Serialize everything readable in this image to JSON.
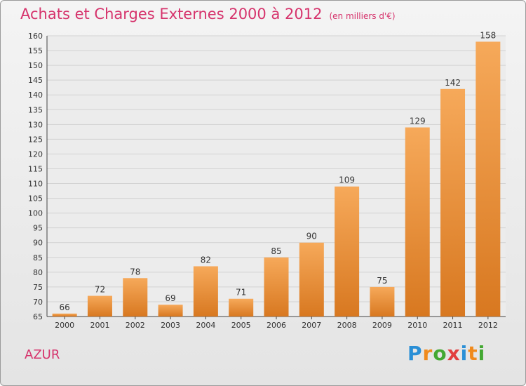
{
  "title": "Achats et Charges Externes 2000 à 2012",
  "subtitle": "(en milliers d'€)",
  "commune": "AZUR",
  "logo": {
    "text": "Proxiti",
    "colors": [
      "#2a8fd6",
      "#f08a1c",
      "#43a832",
      "#e23d3d",
      "#2a8fd6",
      "#f08a1c",
      "#43a832"
    ]
  },
  "colors": {
    "bar_light": "#f6a95a",
    "bar_dark": "#d87820",
    "title": "#d6336c"
  },
  "chart_data": {
    "type": "bar",
    "title": "Achats et Charges Externes 2000 à 2012",
    "subtitle": "(en milliers d'€)",
    "categories": [
      "2000",
      "2001",
      "2002",
      "2003",
      "2004",
      "2005",
      "2006",
      "2007",
      "2008",
      "2009",
      "2010",
      "2011",
      "2012"
    ],
    "values": [
      66,
      72,
      78,
      69,
      82,
      71,
      85,
      90,
      109,
      75,
      129,
      142,
      158
    ],
    "ylim": [
      65,
      160
    ],
    "yticks": [
      65,
      70,
      75,
      80,
      85,
      90,
      95,
      100,
      105,
      110,
      115,
      120,
      125,
      130,
      135,
      140,
      145,
      150,
      155,
      160
    ],
    "grid": true,
    "legend": "none",
    "data_labels": true
  }
}
